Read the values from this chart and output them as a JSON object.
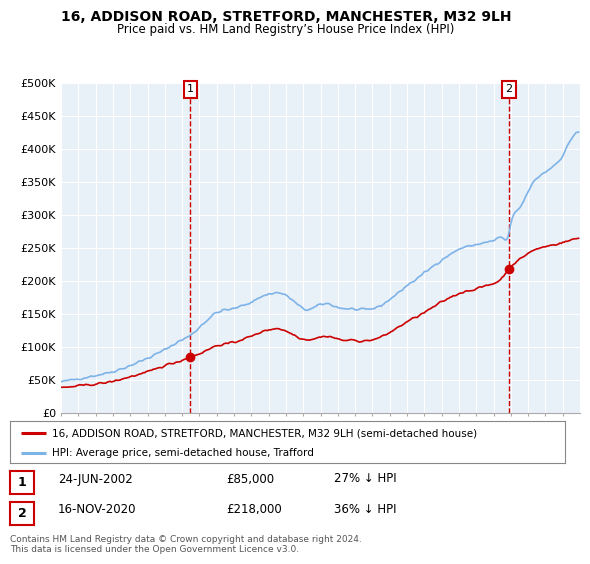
{
  "title": "16, ADDISON ROAD, STRETFORD, MANCHESTER, M32 9LH",
  "subtitle": "Price paid vs. HM Land Registry’s House Price Index (HPI)",
  "red_label": "16, ADDISON ROAD, STRETFORD, MANCHESTER, M32 9LH (semi-detached house)",
  "blue_label": "HPI: Average price, semi-detached house, Trafford",
  "footnote": "Contains HM Land Registry data © Crown copyright and database right 2024.\nThis data is licensed under the Open Government Licence v3.0.",
  "marker1_date": "24-JUN-2002",
  "marker1_price": "£85,000",
  "marker1_hpi": "27% ↓ HPI",
  "marker2_date": "16-NOV-2020",
  "marker2_price": "£218,000",
  "marker2_hpi": "36% ↓ HPI",
  "ylim": [
    0,
    500000
  ],
  "yticks": [
    0,
    50000,
    100000,
    150000,
    200000,
    250000,
    300000,
    350000,
    400000,
    450000,
    500000
  ],
  "ytick_labels": [
    "£0",
    "£50K",
    "£100K",
    "£150K",
    "£200K",
    "£250K",
    "£300K",
    "£350K",
    "£400K",
    "£450K",
    "£500K"
  ],
  "hpi_color": "#7EB3E8",
  "price_color": "#CC0000",
  "marker_border_color": "#CC0000",
  "bg_color": "#FFFFFF",
  "plot_bg_color": "#E8F0F8",
  "grid_color": "#FFFFFF",
  "sale1_x": 2002.48,
  "sale1_y": 85000,
  "sale2_x": 2020.88,
  "sale2_y": 218000,
  "xmin": 1995,
  "xmax": 2025
}
